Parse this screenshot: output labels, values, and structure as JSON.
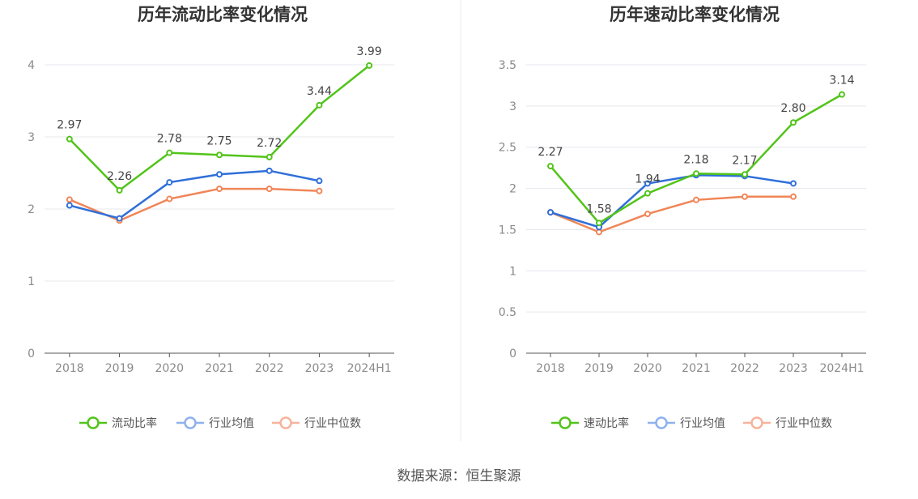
{
  "source_text": "数据来源：恒生聚源",
  "chart_data": [
    {
      "type": "line",
      "title": "历年流动比率变化情况",
      "categories": [
        "2018",
        "2019",
        "2020",
        "2021",
        "2022",
        "2023",
        "2024H1"
      ],
      "ylim": [
        0,
        4
      ],
      "yticks": [
        0,
        1,
        2,
        3,
        4
      ],
      "grid": true,
      "legend_position": "bottom",
      "series": [
        {
          "name": "流动比率",
          "color": "#52c41a",
          "legend_color": "#52c41a",
          "values": [
            2.97,
            2.26,
            2.78,
            2.75,
            2.72,
            3.44,
            3.99
          ],
          "labels": [
            "2.97",
            "2.26",
            "2.78",
            "2.75",
            "2.72",
            "3.44",
            "3.99"
          ]
        },
        {
          "name": "行业均值",
          "color": "#2f6fd9",
          "legend_color": "#8fb1ee",
          "values": [
            2.05,
            1.87,
            2.37,
            2.48,
            2.53,
            2.39,
            null
          ]
        },
        {
          "name": "行业中位数",
          "color": "#f08658",
          "legend_color": "#f7b39b",
          "values": [
            2.13,
            1.84,
            2.14,
            2.28,
            2.28,
            2.25,
            null
          ]
        }
      ]
    },
    {
      "type": "line",
      "title": "历年速动比率变化情况",
      "categories": [
        "2018",
        "2019",
        "2020",
        "2021",
        "2022",
        "2023",
        "2024H1"
      ],
      "ylim": [
        0,
        3.5
      ],
      "yticks": [
        0,
        0.5,
        1,
        1.5,
        2,
        2.5,
        3,
        3.5
      ],
      "grid": true,
      "legend_position": "bottom",
      "series": [
        {
          "name": "速动比率",
          "color": "#52c41a",
          "legend_color": "#52c41a",
          "values": [
            2.27,
            1.58,
            1.94,
            2.18,
            2.17,
            2.8,
            3.14
          ],
          "labels": [
            "2.27",
            "1.58",
            "1.94",
            "2.18",
            "2.17",
            "2.80",
            "3.14"
          ]
        },
        {
          "name": "行业均值",
          "color": "#2f6fd9",
          "legend_color": "#8fb1ee",
          "values": [
            1.71,
            1.53,
            2.06,
            2.16,
            2.15,
            2.06,
            null
          ]
        },
        {
          "name": "行业中位数",
          "color": "#f08658",
          "legend_color": "#f7b39b",
          "values": [
            1.71,
            1.47,
            1.69,
            1.86,
            1.9,
            1.9,
            null
          ]
        }
      ]
    }
  ]
}
